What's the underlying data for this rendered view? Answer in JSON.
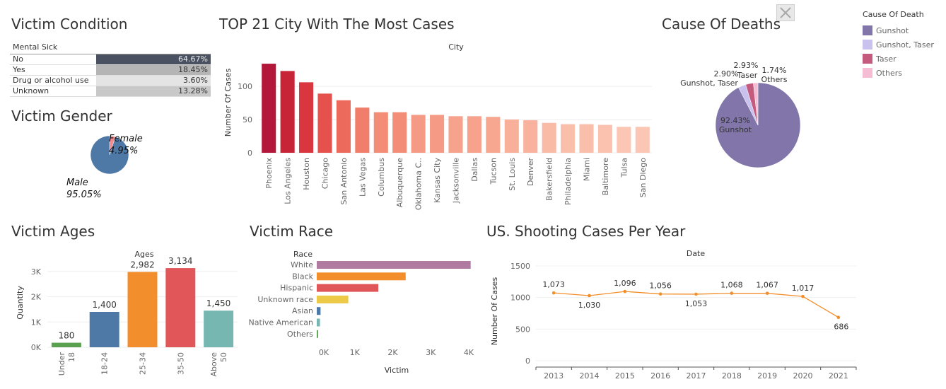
{
  "titles": {
    "condition": "Victim Condition",
    "city": "TOP 21 City With The Most Cases",
    "deaths": "Cause Of Deaths",
    "gender": "Victim Gender",
    "ages": "Victim Ages",
    "race": "Victim Race",
    "year": "US. Shooting Cases Per Year"
  },
  "condition_table": {
    "header": "Mental Sick",
    "rows": [
      {
        "label": "No",
        "value": "64.67%",
        "color": "#4a5262"
      },
      {
        "label": "Yes",
        "value": "18.45%",
        "color": "#b5b5b5"
      },
      {
        "label": "Drug or alcohol use",
        "value": "3.60%",
        "color": "#e4e4e4"
      },
      {
        "label": "Unknown",
        "value": "13.28%",
        "color": "#c8c8c8"
      }
    ]
  },
  "legend": {
    "title": "Cause Of Death",
    "items": [
      {
        "label": "Gunshot",
        "color": "#8175aa"
      },
      {
        "label": "Gunshot, Taser",
        "color": "#c9c2ee"
      },
      {
        "label": "Taser",
        "color": "#c45a7e"
      },
      {
        "label": "Others",
        "color": "#f5bcd3"
      }
    ]
  },
  "chart_data": [
    {
      "id": "city",
      "type": "bar",
      "title": "City",
      "ylabel": "Number Of Cases",
      "ylim": [
        0,
        150
      ],
      "yticks": [
        "0",
        "50",
        "100"
      ],
      "categories": [
        "Phoenix",
        "Los Angeles",
        "Houston",
        "Chicago",
        "San Antonio",
        "Las Vegas",
        "Columbus",
        "Albuquerque",
        "Oklahoma C..",
        "Kansas City",
        "Jacksonville",
        "Dallas",
        "Tucson",
        "St. Louis",
        "Denver",
        "Bakersfield",
        "Philadelphia",
        "Miami",
        "Baltimore",
        "Tulsa",
        "San Diego"
      ],
      "values": [
        134,
        123,
        106,
        89,
        79,
        68,
        61,
        61,
        57,
        57,
        55,
        55,
        54,
        50,
        49,
        45,
        43,
        43,
        42,
        39,
        39
      ],
      "colors": [
        "#b3173a",
        "#c82438",
        "#d9363f",
        "#e5514c",
        "#ec6a5c",
        "#f07e6a",
        "#f38d78",
        "#f38d78",
        "#f59a85",
        "#f59a85",
        "#f6a28d",
        "#f6a28d",
        "#f7a790",
        "#f8b09b",
        "#f8b29d",
        "#f9baa6",
        "#f9bfab",
        "#f9bfab",
        "#fac2af",
        "#fbc7b4",
        "#fbc7b4"
      ]
    },
    {
      "id": "deaths",
      "type": "pie",
      "categories": [
        "Gunshot",
        "Gunshot, Taser",
        "Taser",
        "Others"
      ],
      "values": [
        92.43,
        2.9,
        2.93,
        1.74
      ],
      "labels": [
        "92.43%",
        "2.90%",
        "2.93%",
        "1.74%"
      ],
      "colors": [
        "#8175aa",
        "#c9c2ee",
        "#c45a7e",
        "#f5bcd3"
      ]
    },
    {
      "id": "gender",
      "type": "pie",
      "categories": [
        "Male",
        "Female"
      ],
      "values": [
        95.05,
        4.95
      ],
      "labels": [
        "95.05%",
        "4.95%"
      ],
      "colors": [
        "#4e79a7",
        "#ef8a8f"
      ]
    },
    {
      "id": "ages",
      "type": "bar",
      "title": "Ages",
      "ylabel": "Quantity",
      "ylim": [
        0,
        3500
      ],
      "yticks": [
        "0K",
        "1K",
        "2K",
        "3K"
      ],
      "categories": [
        "Under 18",
        "18-24",
        "25-34",
        "35-50",
        "Above 50"
      ],
      "values": [
        180,
        1400,
        2982,
        3134,
        1450
      ],
      "labels": [
        "180",
        "1,400",
        "2,982",
        "3,134",
        "1,450"
      ],
      "colors": [
        "#59a14f",
        "#4e79a7",
        "#f28e2b",
        "#e15759",
        "#76b7b2"
      ]
    },
    {
      "id": "race",
      "type": "bar",
      "title": "Race",
      "xlabel": "Victim",
      "xlim": [
        0,
        4000
      ],
      "xticks": [
        "0K",
        "1K",
        "2K",
        "3K",
        "4K"
      ],
      "categories": [
        "White",
        "Black",
        "Hispanic",
        "Unknown race",
        "Asian",
        "Native American",
        "Others"
      ],
      "values": [
        4050,
        2340,
        1620,
        830,
        100,
        85,
        35
      ],
      "colors": [
        "#b07aa1",
        "#f28e2b",
        "#e15759",
        "#edc948",
        "#4e79a7",
        "#76b7b2",
        "#59a14f"
      ]
    },
    {
      "id": "year",
      "type": "line",
      "title": "Date",
      "ylabel": "Number Of Cases",
      "ylim": [
        0,
        1500
      ],
      "yticks": [
        "0",
        "500",
        "1000",
        "1500"
      ],
      "x": [
        "2013",
        "2014",
        "2015",
        "2016",
        "2017",
        "2018",
        "2019",
        "2020",
        "2021"
      ],
      "values": [
        1073,
        1030,
        1096,
        1056,
        1053,
        1068,
        1067,
        1017,
        686
      ],
      "labels": [
        "1,073",
        "1,030",
        "1,096",
        "1,056",
        "1,053",
        "1,068",
        "1,067",
        "1,017",
        "686"
      ],
      "color": "#f28e2b"
    }
  ]
}
